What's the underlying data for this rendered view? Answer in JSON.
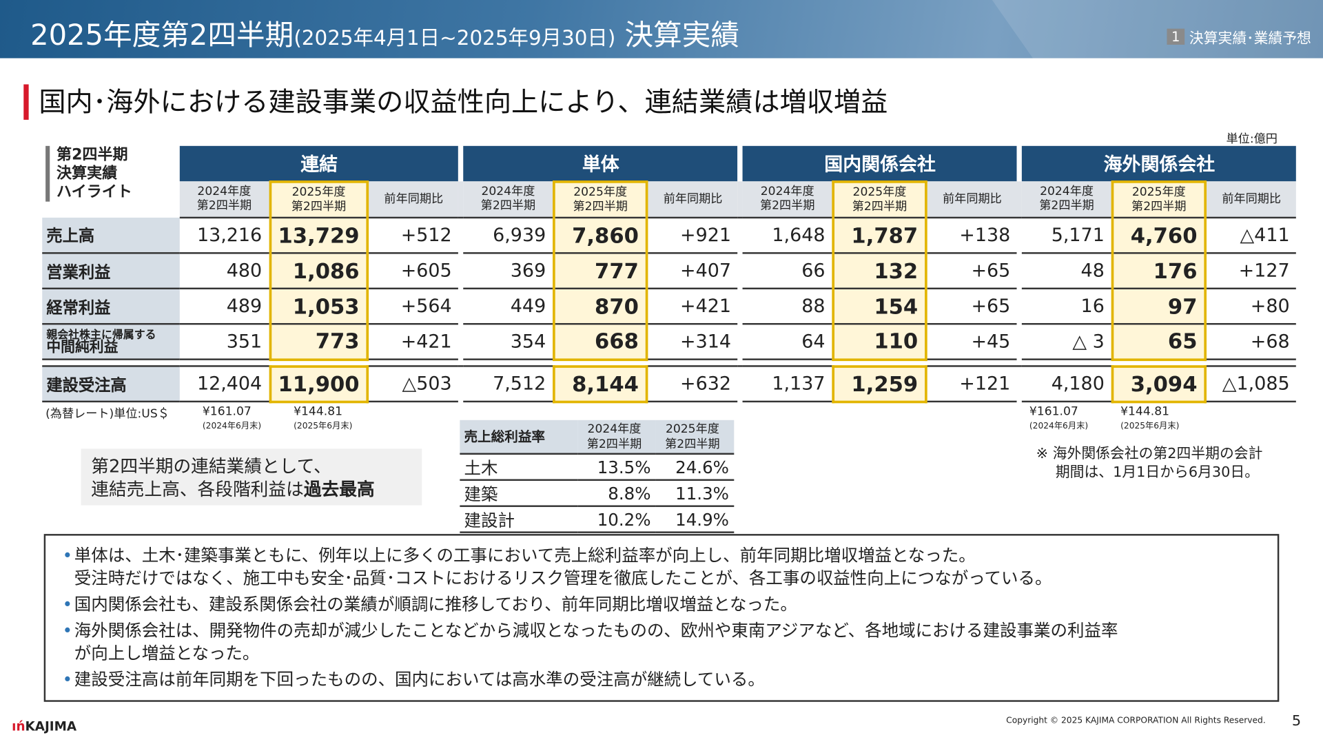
{
  "header": {
    "title": "2025年度第2四半期",
    "period": "(2025年4月1日~2025年9月30日)",
    "title_suffix": "決算実績",
    "section_num": "1",
    "section_label": "決算実績･業績予想"
  },
  "headline": "国内･海外における建設事業の収益性向上により、連結業績は増収増益",
  "unit": "単位:億円",
  "highlight_label": [
    "第2四半期",
    "決算実績",
    "ハイライト"
  ],
  "groups": [
    "連結",
    "単体",
    "国内関係会社",
    "海外関係会社"
  ],
  "subheaders": {
    "prev": [
      "2024年度",
      "第2四半期"
    ],
    "curr": [
      "2025年度",
      "第2四半期"
    ],
    "diff": "前年同期比"
  },
  "rows": [
    {
      "label": "売上高",
      "values": [
        [
          "13,216",
          "13,729",
          "+512"
        ],
        [
          "6,939",
          "7,860",
          "+921"
        ],
        [
          "1,648",
          "1,787",
          "+138"
        ],
        [
          "5,171",
          "4,760",
          "△411"
        ]
      ]
    },
    {
      "label": "営業利益",
      "values": [
        [
          "480",
          "1,086",
          "+605"
        ],
        [
          "369",
          "777",
          "+407"
        ],
        [
          "66",
          "132",
          "+65"
        ],
        [
          "48",
          "176",
          "+127"
        ]
      ]
    },
    {
      "label": "経常利益",
      "values": [
        [
          "489",
          "1,053",
          "+564"
        ],
        [
          "449",
          "870",
          "+421"
        ],
        [
          "88",
          "154",
          "+65"
        ],
        [
          "16",
          "97",
          "+80"
        ]
      ]
    },
    {
      "label_small": "親会社株主に帰属する",
      "label": "中間純利益",
      "values": [
        [
          "351",
          "773",
          "+421"
        ],
        [
          "354",
          "668",
          "+314"
        ],
        [
          "64",
          "110",
          "+45"
        ],
        [
          "△ 3",
          "65",
          "+68"
        ]
      ]
    },
    {
      "label": "建設受注高",
      "values": [
        [
          "12,404",
          "11,900",
          "△503"
        ],
        [
          "7,512",
          "8,144",
          "+632"
        ],
        [
          "1,137",
          "1,259",
          "+121"
        ],
        [
          "4,180",
          "3,094",
          "△1,085"
        ]
      ]
    }
  ],
  "fx": {
    "label": "(為替レート)単位:US＄",
    "prev": "¥161.07",
    "prev_note": "(2024年6月末)",
    "curr": "¥144.81",
    "curr_note": "(2025年6月末)"
  },
  "callout": {
    "line1": "第2四半期の連結業績として、",
    "line2_pre": "連結売上高、各段階利益は",
    "line2_bold": "過去最高"
  },
  "margin_table": {
    "title": "売上総利益率",
    "cols": [
      [
        "2024年度",
        "第2四半期"
      ],
      [
        "2025年度",
        "第2四半期"
      ]
    ],
    "rows": [
      {
        "label": "土木",
        "values": [
          "13.5%",
          "24.6%"
        ]
      },
      {
        "label": "建築",
        "values": [
          "8.8%",
          "11.3%"
        ]
      },
      {
        "label": "建設計",
        "values": [
          "10.2%",
          "14.9%"
        ]
      }
    ]
  },
  "note": [
    "※ 海外関係会社の第2四半期の会計",
    "期間は、1月1日から6月30日。"
  ],
  "bullets": [
    [
      "単体は、土木･建築事業ともに、例年以上に多くの工事において売上総利益率が向上し、前年同期比増収増益となった。",
      "受注時だけではなく、施工中も安全･品質･コストにおけるリスク管理を徹底したことが、各工事の収益性向上につながっている。"
    ],
    [
      "国内関係会社も、建設系関係会社の業績が順調に推移しており、前年同期比増収増益となった。"
    ],
    [
      "海外関係会社は、開発物件の売却が減少したことなどから減収となったものの、欧州や東南アジアなど、各地域における建設事業の利益率",
      "が向上し増益となった。"
    ],
    [
      "建設受注高は前年同期を下回ったものの、国内においては高水準の受注高が継続している。"
    ]
  ],
  "footer": {
    "logo": "KAJIMA",
    "copyright": "Copyright © 2025 KAJIMA CORPORATION All Rights Reserved.",
    "page": "5"
  },
  "colors": {
    "navy": "#1f4e79",
    "highlight_border": "#e2b500",
    "accent_red": "#d7192b"
  }
}
